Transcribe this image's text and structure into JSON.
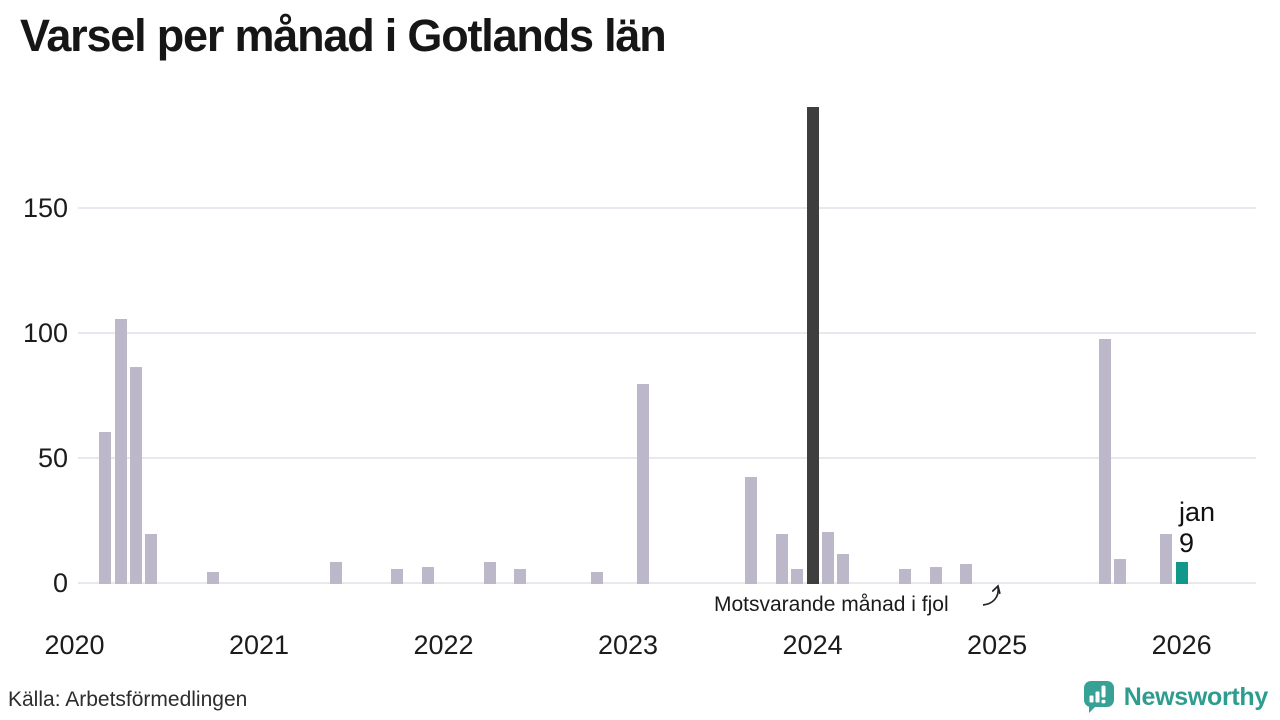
{
  "title": "Varsel per månad i Gotlands län",
  "source": "Källa: Arbetsförmedlingen",
  "branding": {
    "logo_text": "Newsworthy",
    "logo_icon": "newsworthy-speech-bubble-chart-icon"
  },
  "annotation": {
    "text": "Motsvarande månad i fjol",
    "points_to_month": "2025-01",
    "points_to_value": 0
  },
  "current_point_label": {
    "line1": "jan",
    "line2": "9"
  },
  "colors": {
    "bar_default": "#bcb8c9",
    "bar_dark": "#3e3e3e",
    "bar_current": "#12988a",
    "gridline": "#e9e8ee",
    "title_text": "#161616",
    "axis_text": "#1c1c1c",
    "logo_teal": "#35a295"
  },
  "chart_data": {
    "type": "bar",
    "title": "Varsel per månad i Gotlands län",
    "xlabel": "",
    "ylabel": "",
    "grid": "horizontal",
    "legend": "none",
    "x_axis": {
      "tick_labels": [
        "2020",
        "2021",
        "2022",
        "2023",
        "2024",
        "2025",
        "2026"
      ],
      "range_start": "2020-01",
      "range_end": "2026-01"
    },
    "y_axis": {
      "ticks": [
        0,
        50,
        100,
        150
      ],
      "tick_labels": [
        "0",
        "50",
        "100",
        "150"
      ],
      "range": [
        0,
        191
      ]
    },
    "points": [
      {
        "month": "2020-03",
        "value": 61,
        "color_role": "default"
      },
      {
        "month": "2020-04",
        "value": 106,
        "color_role": "default"
      },
      {
        "month": "2020-05",
        "value": 87,
        "color_role": "default"
      },
      {
        "month": "2020-06",
        "value": 20,
        "color_role": "default"
      },
      {
        "month": "2020-10",
        "value": 5,
        "color_role": "default"
      },
      {
        "month": "2021-06",
        "value": 9,
        "color_role": "default"
      },
      {
        "month": "2021-10",
        "value": 6,
        "color_role": "default"
      },
      {
        "month": "2021-12",
        "value": 7,
        "color_role": "default"
      },
      {
        "month": "2022-04",
        "value": 9,
        "color_role": "default"
      },
      {
        "month": "2022-06",
        "value": 6,
        "color_role": "default"
      },
      {
        "month": "2022-11",
        "value": 5,
        "color_role": "default"
      },
      {
        "month": "2023-02",
        "value": 80,
        "color_role": "default"
      },
      {
        "month": "2023-09",
        "value": 43,
        "color_role": "default"
      },
      {
        "month": "2023-11",
        "value": 20,
        "color_role": "default"
      },
      {
        "month": "2023-12",
        "value": 6,
        "color_role": "default"
      },
      {
        "month": "2024-01",
        "value": 191,
        "color_role": "dark"
      },
      {
        "month": "2024-02",
        "value": 21,
        "color_role": "default"
      },
      {
        "month": "2024-03",
        "value": 12,
        "color_role": "default"
      },
      {
        "month": "2024-07",
        "value": 6,
        "color_role": "default"
      },
      {
        "month": "2024-09",
        "value": 7,
        "color_role": "default"
      },
      {
        "month": "2024-11",
        "value": 8,
        "color_role": "default"
      },
      {
        "month": "2025-08",
        "value": 98,
        "color_role": "default"
      },
      {
        "month": "2025-09",
        "value": 10,
        "color_role": "default"
      },
      {
        "month": "2025-12",
        "value": 20,
        "color_role": "default"
      },
      {
        "month": "2026-01",
        "value": 9,
        "color_role": "current"
      }
    ]
  }
}
